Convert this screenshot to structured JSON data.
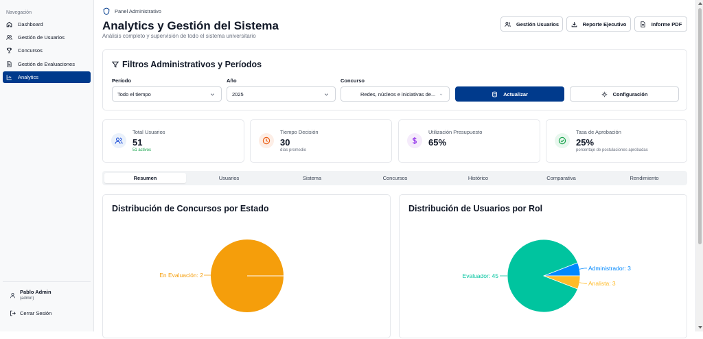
{
  "sidebar": {
    "section_title": "Navegación",
    "items": [
      {
        "label": "Dashboard",
        "icon": "home-icon"
      },
      {
        "label": "Gestión de Usuarios",
        "icon": "users-icon"
      },
      {
        "label": "Concursos",
        "icon": "trophy-icon"
      },
      {
        "label": "Gestión de Evaluaciones",
        "icon": "document-icon"
      },
      {
        "label": "Analytics",
        "icon": "bar-chart-icon",
        "active": true
      }
    ],
    "user": {
      "name": "Pablo Admin",
      "role": "(admin)"
    },
    "logout_label": "Cerrar Sesión"
  },
  "header": {
    "breadcrumb": "Panel Administrativo",
    "title": "Analytics y Gestión del Sistema",
    "subtitle": "Análisis completo y supervisión de todo el sistema universitario",
    "buttons": {
      "users": "Gestión Usuarios",
      "report": "Reporte Ejecutivo",
      "pdf": "Informe PDF"
    }
  },
  "filters": {
    "title": "Filtros Administrativos y Períodos",
    "period_label": "Período",
    "period_value": "Todo el tiempo",
    "year_label": "Año",
    "year_value": "2025",
    "contest_label": "Concurso",
    "contest_value": "Redes, núcleos e iniciativas de...",
    "update_label": "Actualizar",
    "config_label": "Configuración"
  },
  "stats": [
    {
      "label": "Total Usuarios",
      "value": "51",
      "sub": "51 activos"
    },
    {
      "label": "Tiempo Decisión",
      "value": "30",
      "sub": "días promedio"
    },
    {
      "label": "Utilización Presupuesto",
      "value": "65%",
      "sub": ""
    },
    {
      "label": "Tasa de Aprobación",
      "value": "25%",
      "sub": "porcentaje de postulaciones aprobadas"
    }
  ],
  "colors": {
    "primary": "#003a8c",
    "users_icon_bg": "#eaf1fb",
    "time_icon_bg": "#fdeee6",
    "budget_icon_bg": "#f5ebfb",
    "approval_icon_bg": "#e8f7ee",
    "active_sub_text": "#16a34a",
    "pie_orange": "#f59e0b",
    "pie_teal": "#00c49f",
    "pie_blue": "#0088fe",
    "pie_yellow": "#ffbb28"
  },
  "tabs": [
    "Resumen",
    "Usuarios",
    "Sistema",
    "Concursos",
    "Histórico",
    "Comparativa",
    "Rendimiento"
  ],
  "chart_data": [
    {
      "type": "pie",
      "title": "Distribución de Concursos por Estado",
      "categories": [
        "En Evaluación"
      ],
      "values": [
        2
      ],
      "labels": [
        "En Evaluación: 2"
      ]
    },
    {
      "type": "pie",
      "title": "Distribución de Usuarios por Rol",
      "categories": [
        "Evaluador",
        "Administrador",
        "Analista"
      ],
      "values": [
        45,
        3,
        3
      ],
      "labels": [
        "Evaluador: 45",
        "Administrador: 3",
        "Analista: 3"
      ]
    }
  ]
}
